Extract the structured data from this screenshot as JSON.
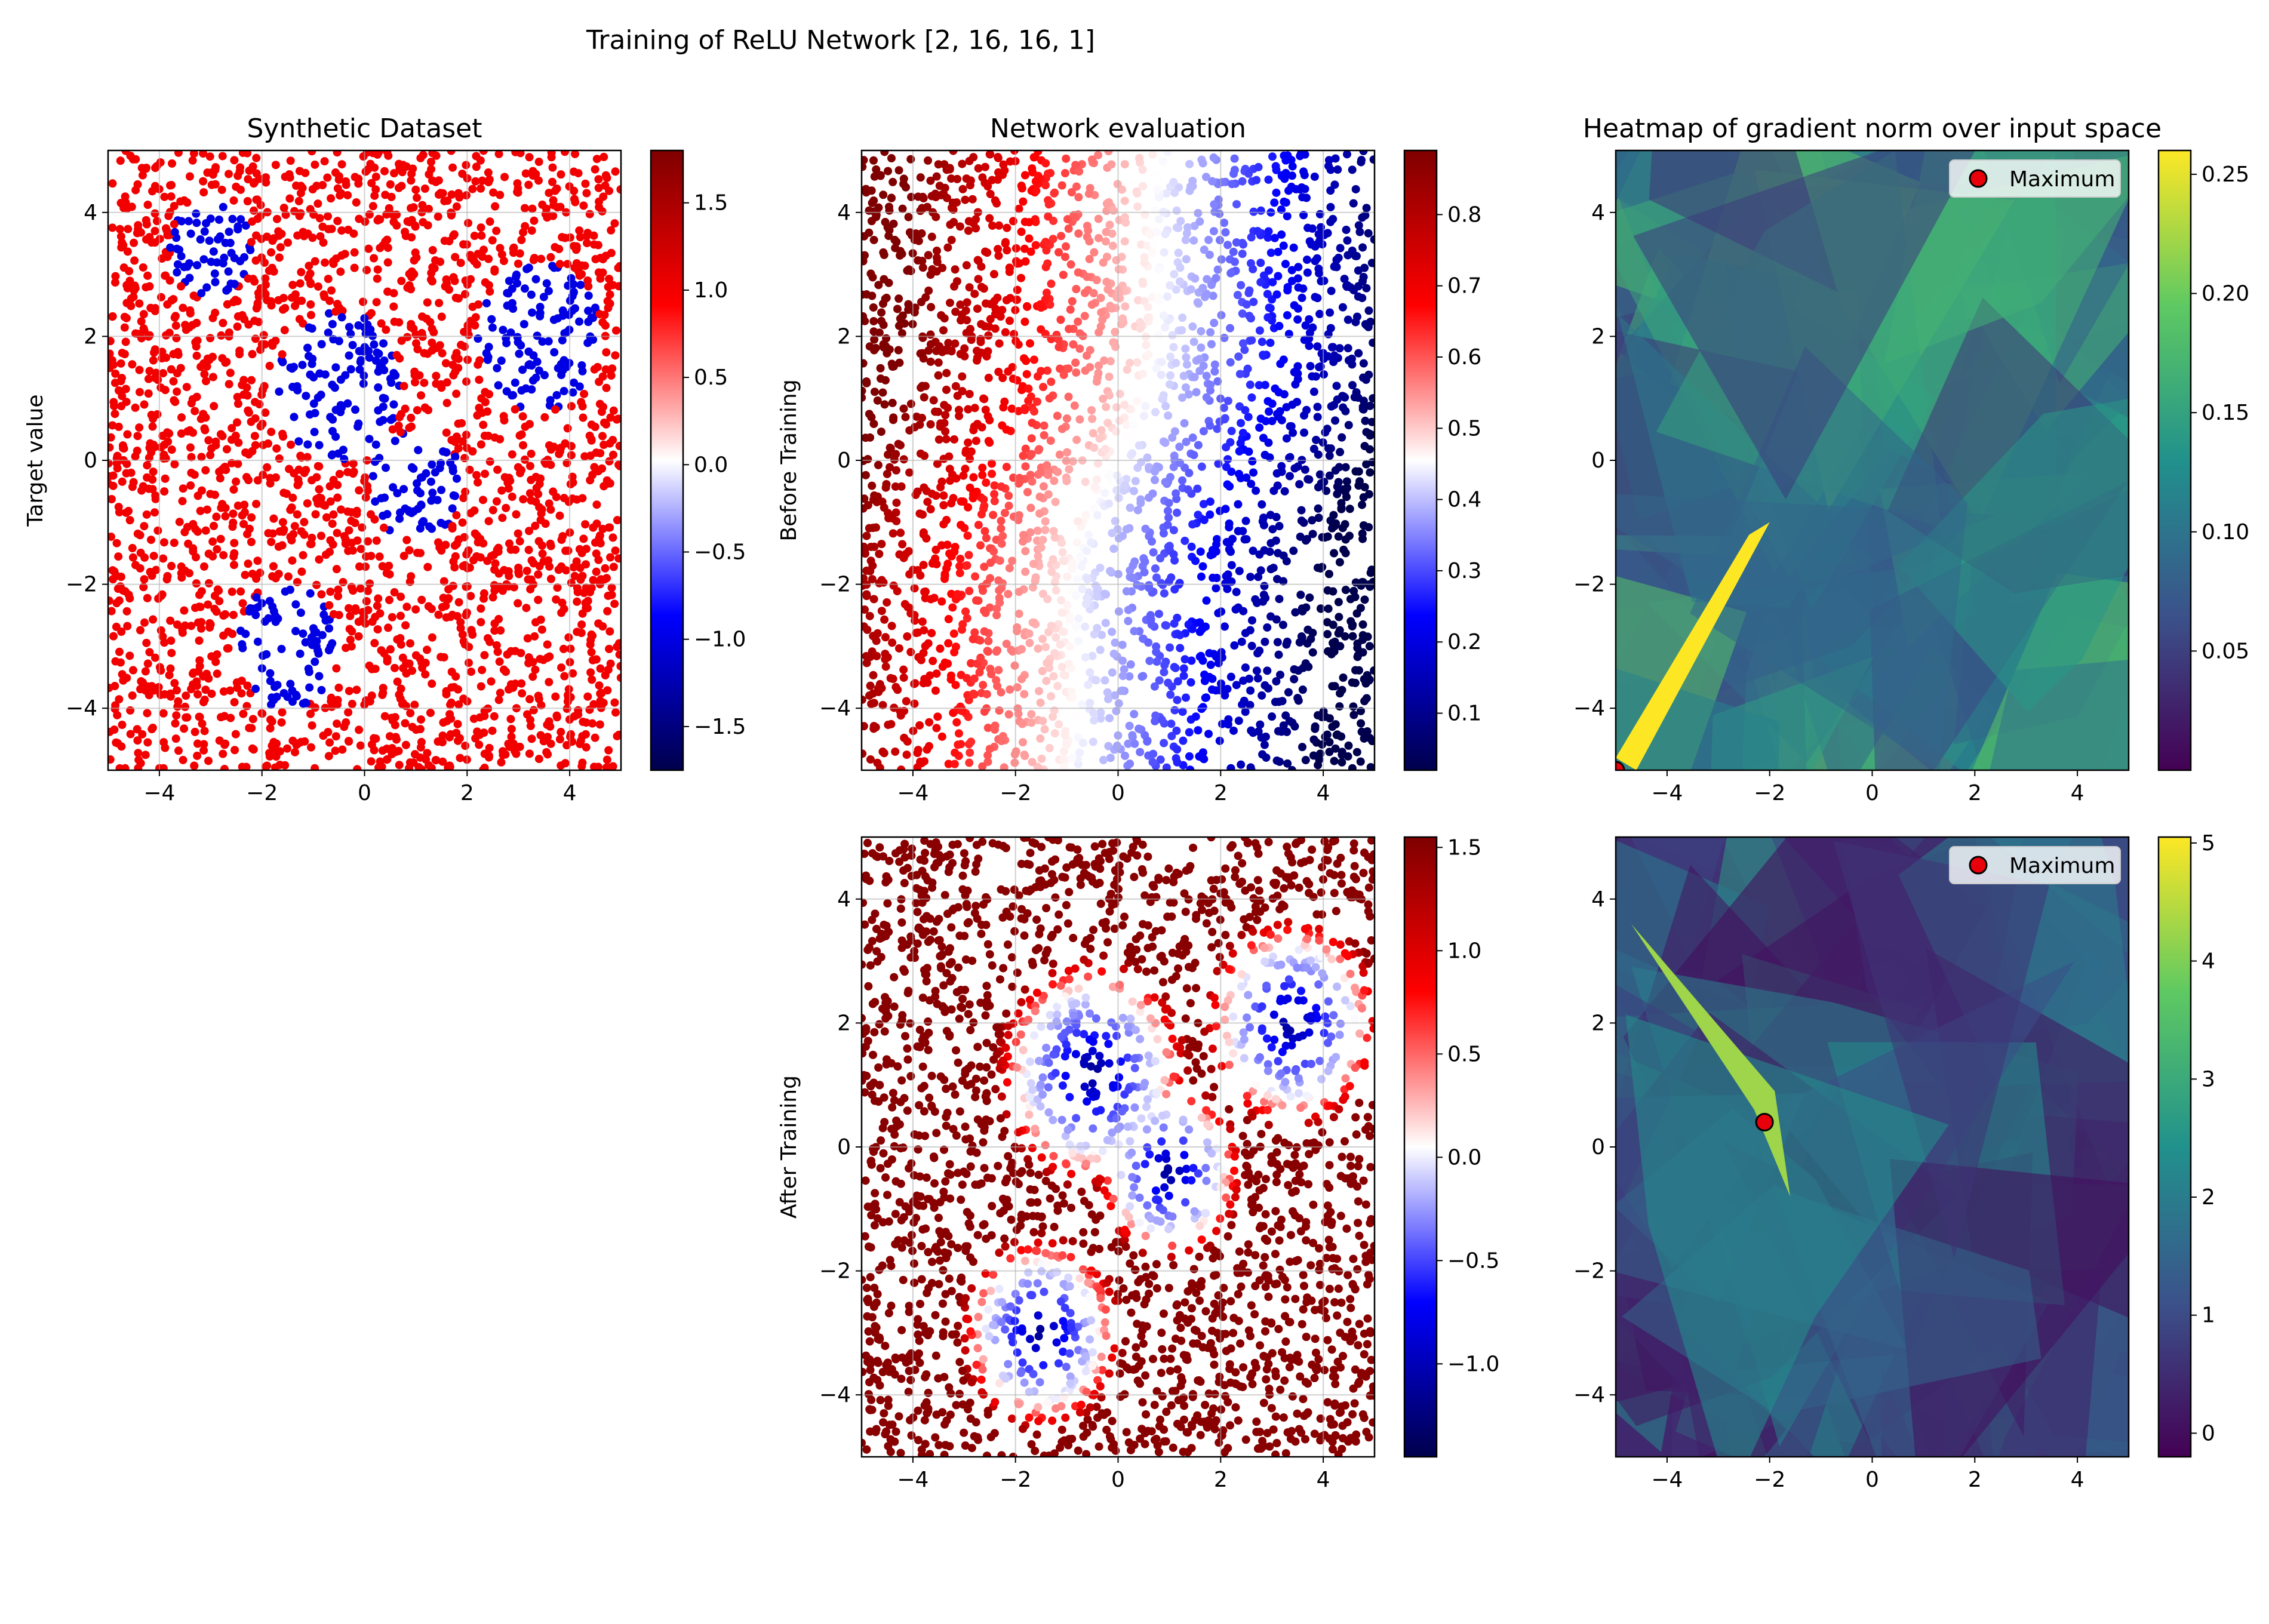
{
  "figure": {
    "title": "Training of ReLU Network [2, 16, 16, 1]"
  },
  "chart_data": [
    {
      "id": "dataset",
      "type": "scatter",
      "title": "Synthetic Dataset",
      "xlabel": "",
      "ylabel": "Target value",
      "xlim": [
        -5,
        5
      ],
      "ylim": [
        -5,
        5
      ],
      "xticks": [
        "−4",
        "−2",
        "0",
        "2",
        "4"
      ],
      "yticks": [
        "−4",
        "−2",
        "0",
        "2",
        "4"
      ],
      "grid": true,
      "colormap": "seismic",
      "colorbar": {
        "range": [
          -1.75,
          1.8
        ],
        "ticks": [
          "−1.5",
          "−1.0",
          "−0.5",
          "0.0",
          "0.5",
          "1.0",
          "1.5"
        ],
        "values": [
          -1.5,
          -1.0,
          -0.5,
          0.0,
          0.5,
          1.0,
          1.5
        ]
      },
      "regions_blue": [
        {
          "cx": -3.0,
          "cy": 3.4,
          "r": 0.8
        },
        {
          "cx": 3.4,
          "cy": 2.0,
          "r": 1.2
        },
        {
          "cx": -0.5,
          "cy": 1.2,
          "r": 1.2
        },
        {
          "cx": 1.0,
          "cy": -0.4,
          "r": 0.9
        },
        {
          "cx": -1.5,
          "cy": -3.0,
          "r": 1.0
        }
      ],
      "values": {
        "outside": 1.0,
        "inside": -1.0
      }
    },
    {
      "id": "before",
      "type": "scatter",
      "title": "Network evaluation",
      "xlabel": "",
      "ylabel": "Before Training",
      "xlim": [
        -5,
        5
      ],
      "ylim": [
        -5,
        5
      ],
      "xticks": [
        "−4",
        "−2",
        "0",
        "2",
        "4"
      ],
      "yticks": [
        "−4",
        "−2",
        "0",
        "2",
        "4"
      ],
      "grid": true,
      "colormap": "seismic",
      "colorbar": {
        "range": [
          0.02,
          0.89
        ],
        "ticks": [
          "0.1",
          "0.2",
          "0.3",
          "0.4",
          "0.5",
          "0.6",
          "0.7",
          "0.8"
        ],
        "values": [
          0.1,
          0.2,
          0.3,
          0.4,
          0.5,
          0.6,
          0.7,
          0.8
        ]
      }
    },
    {
      "id": "gradBefore",
      "type": "heatmap",
      "title": "Heatmap of gradient norm over input space",
      "xlabel": "",
      "ylabel": "",
      "xlim": [
        -5,
        5
      ],
      "ylim": [
        -5,
        5
      ],
      "xticks": [
        "−4",
        "−2",
        "0",
        "2",
        "4"
      ],
      "yticks": [
        "−4",
        "−2",
        "0",
        "2",
        "4"
      ],
      "colormap": "viridis",
      "colorbar": {
        "range": [
          0.0,
          0.26
        ],
        "ticks": [
          "0.05",
          "0.10",
          "0.15",
          "0.20",
          "0.25"
        ],
        "values": [
          0.05,
          0.1,
          0.15,
          0.2,
          0.25
        ]
      },
      "legend": {
        "label": "Maximum",
        "placement": "top-right"
      },
      "maximum": {
        "x": -5.0,
        "y": -5.0
      }
    },
    {
      "id": "after",
      "type": "scatter",
      "title": "",
      "xlabel": "",
      "ylabel": "After Training",
      "xlim": [
        -5,
        5
      ],
      "ylim": [
        -5,
        5
      ],
      "xticks": [
        "−4",
        "−2",
        "0",
        "2",
        "4"
      ],
      "yticks": [
        "−4",
        "−2",
        "0",
        "2",
        "4"
      ],
      "grid": true,
      "colormap": "seismic",
      "colorbar": {
        "range": [
          -1.45,
          1.55
        ],
        "ticks": [
          "−1.0",
          "−0.5",
          "0.0",
          "0.5",
          "1.0",
          "1.5"
        ],
        "values": [
          -1.0,
          -0.5,
          0.0,
          0.5,
          1.0,
          1.5
        ]
      }
    },
    {
      "id": "gradAfter",
      "type": "heatmap",
      "title": "",
      "xlabel": "",
      "ylabel": "",
      "xlim": [
        -5,
        5
      ],
      "ylim": [
        -5,
        5
      ],
      "xticks": [
        "−4",
        "−2",
        "0",
        "2",
        "4"
      ],
      "yticks": [
        "−4",
        "−2",
        "0",
        "2",
        "4"
      ],
      "colormap": "viridis",
      "colorbar": {
        "range": [
          -0.2,
          5.05
        ],
        "ticks": [
          "0",
          "1",
          "2",
          "3",
          "4",
          "5"
        ],
        "values": [
          0,
          1,
          2,
          3,
          4,
          5
        ]
      },
      "legend": {
        "label": "Maximum",
        "placement": "top-right"
      },
      "maximum": {
        "x": -2.1,
        "y": 0.4
      }
    }
  ]
}
